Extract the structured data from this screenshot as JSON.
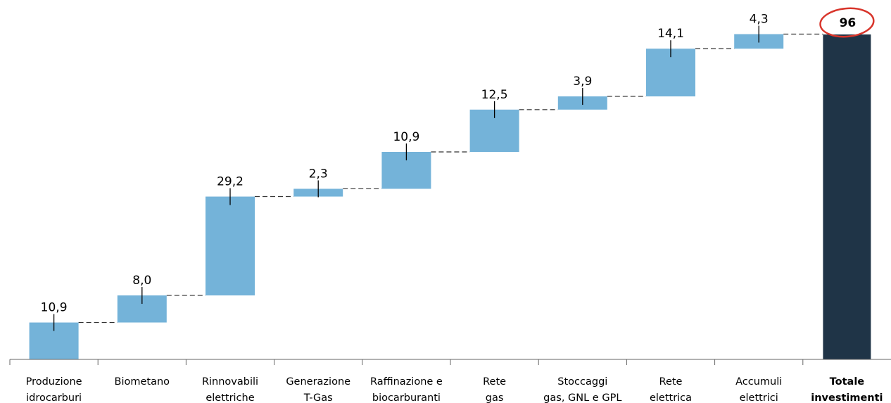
{
  "chart_data": {
    "type": "bar",
    "subtype": "waterfall",
    "categories": [
      [
        "Produzione",
        "idrocarburi"
      ],
      [
        "Biometano"
      ],
      [
        "Rinnovabili",
        "elettriche"
      ],
      [
        "Generazione",
        "T-Gas"
      ],
      [
        "Raffinazione e",
        "biocarburanti"
      ],
      [
        "Rete",
        "gas"
      ],
      [
        "Stoccaggi",
        "gas, GNL e GPL"
      ],
      [
        "Rete",
        "elettrica"
      ],
      [
        "Accumuli",
        "elettrici"
      ],
      [
        "Totale",
        "investimenti"
      ]
    ],
    "values": [
      10.9,
      8.0,
      29.2,
      2.3,
      10.9,
      12.5,
      3.9,
      14.1,
      4.3,
      96
    ],
    "value_labels": [
      "10,9",
      "8,0",
      "29,2",
      "2,3",
      "10,9",
      "12,5",
      "3,9",
      "14,1",
      "4,3",
      "96"
    ],
    "total_index": 9,
    "total_highlighted": true,
    "connectors": "dashed",
    "colors": {
      "increment": "#74b3d9",
      "total": "#1f3447",
      "highlight_ring": "#d8352b"
    },
    "ylim": [
      0,
      96
    ],
    "grid": false,
    "title": "",
    "xlabel": "",
    "ylabel": ""
  }
}
